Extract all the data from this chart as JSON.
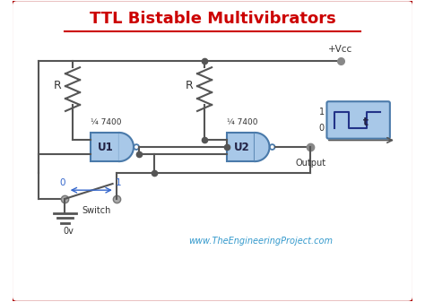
{
  "title": "TTL Bistable Multivibrators",
  "title_color": "#cc0000",
  "title_fontsize": 13,
  "bg_color": "#ffffff",
  "border_color": "#aa0000",
  "gate_fill": "#a8c8e8",
  "gate_edge": "#4a7aaa",
  "wire_color": "#555555",
  "node_color": "#555555",
  "text_color": "#333333",
  "blue_text_color": "#3366cc",
  "website_text": "www.TheEngineeringProject.com",
  "website_color": "#3399cc",
  "vcc_label": "+Vcc",
  "r_label": "R",
  "u1_label": "U1",
  "u2_label": "U2",
  "gate_label": "¼ 7400",
  "switch_label": "Switch",
  "ov_label": "0v",
  "output_label": "Output",
  "t_label": "t"
}
